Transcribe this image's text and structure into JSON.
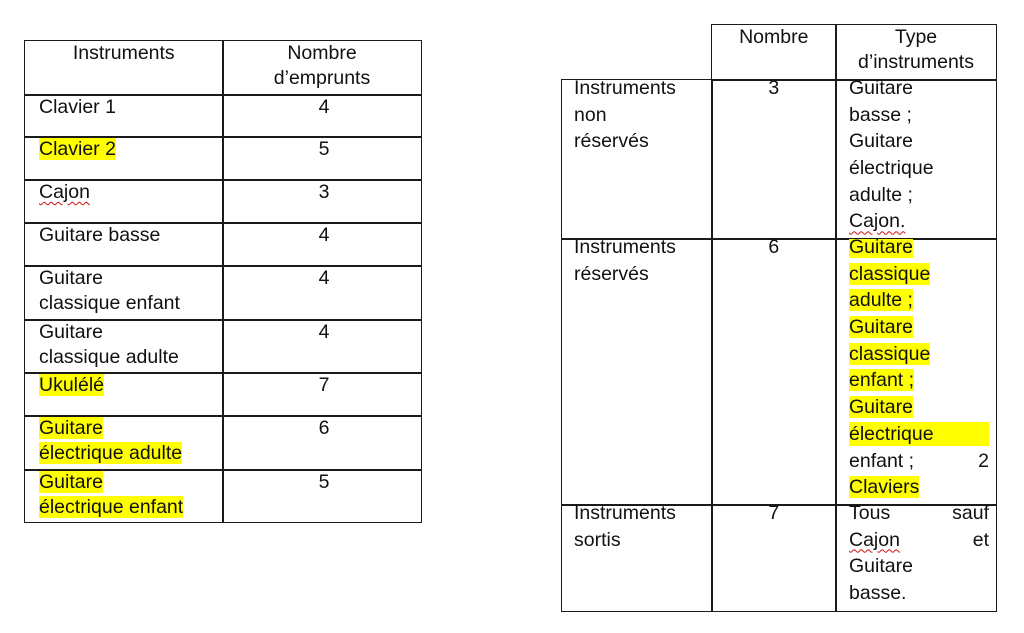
{
  "left_table": {
    "headers": [
      "Instruments",
      "Nombre d’emprunts"
    ],
    "header_lines": [
      [
        "Instruments"
      ],
      [
        "Nombre",
        "d’emprunts"
      ]
    ],
    "rows": [
      {
        "instrument": [
          "Clavier 1"
        ],
        "count": "4",
        "highlight": false
      },
      {
        "instrument": [
          "Clavier 2"
        ],
        "count": "5",
        "highlight": true
      },
      {
        "instrument": [
          "Cajon"
        ],
        "count": "3",
        "highlight": false,
        "spellcheck": true
      },
      {
        "instrument": [
          "Guitare basse"
        ],
        "count": "4",
        "highlight": false
      },
      {
        "instrument": [
          "Guitare",
          "classique enfant"
        ],
        "count": "4",
        "highlight": false
      },
      {
        "instrument": [
          "Guitare",
          "classique adulte"
        ],
        "count": "4",
        "highlight": false
      },
      {
        "instrument": [
          "Ukulélé"
        ],
        "count": "7",
        "highlight": true
      },
      {
        "instrument": [
          "Guitare",
          "électrique adulte"
        ],
        "count": "6",
        "highlight": true
      },
      {
        "instrument": [
          "Guitare",
          "électrique enfant"
        ],
        "count": "5",
        "highlight": true
      }
    ]
  },
  "right_table": {
    "headers": [
      "",
      "Nombre",
      "Type d’instruments"
    ],
    "header_lines": [
      [],
      [
        "Nombre"
      ],
      [
        "Type",
        "d’instruments"
      ]
    ],
    "rows": [
      {
        "label": [
          "Instruments",
          "non",
          "réservés"
        ],
        "count": "3",
        "types": [
          {
            "text": "Guitare"
          },
          {
            "text": "basse ;"
          },
          {
            "text": "Guitare"
          },
          {
            "text": "électrique"
          },
          {
            "text": "adulte ;"
          },
          {
            "text": "Cajon.",
            "spellcheck": true
          }
        ]
      },
      {
        "label": [
          "Instruments",
          "réservés"
        ],
        "count": "6",
        "types": [
          {
            "text": "Guitare",
            "highlight": true
          },
          {
            "text": "classique",
            "highlight": true
          },
          {
            "text": "adulte ;",
            "highlight": true
          },
          {
            "text": "Guitare",
            "highlight": true
          },
          {
            "text": "classique",
            "highlight": true
          },
          {
            "text": "enfant ;",
            "highlight": true
          },
          {
            "text": "Guitare",
            "highlight": true
          },
          {
            "text": "électrique",
            "highlight": true,
            "wide": true
          },
          {
            "text": "enfant ;",
            "right": "2"
          },
          {
            "text": "Claviers",
            "highlight": true
          }
        ]
      },
      {
        "label": [
          "Instruments",
          "sortis"
        ],
        "count": "7",
        "types": [
          {
            "text": "Tous",
            "right": "sauf"
          },
          {
            "text": "Cajon",
            "right": "et",
            "spellcheck": true
          },
          {
            "text": "Guitare"
          },
          {
            "text": "basse."
          }
        ]
      }
    ]
  },
  "colors": {
    "highlight": "#ffff00",
    "border": "#1a1a1a",
    "spellcheck": "#d01010"
  }
}
